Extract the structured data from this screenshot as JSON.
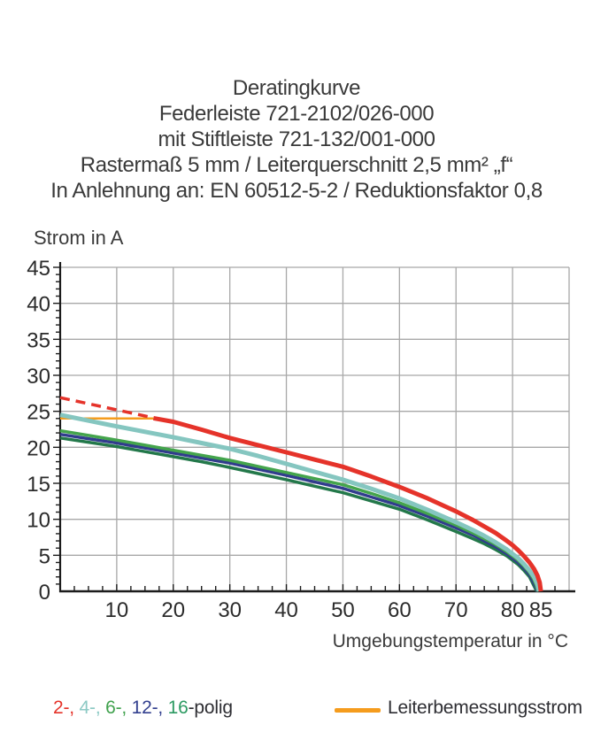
{
  "header": {
    "lines": [
      "Deratingkurve",
      "Federleiste 721-2102/026-000",
      "mit Stiftleiste 721-132/001-000",
      "Rastermaß 5 mm / Leiterquerschnitt 2,5 mm² „f“",
      "In Anlehnung an: EN 60512-5-2 / Reduktionsfaktor 0,8"
    ]
  },
  "chart_data": {
    "type": "line",
    "title": "Deratingkurve Federleiste 721-2102/026-000 mit Stiftleiste 721-132/001-000",
    "xlabel": "Umgebungstemperatur in °C",
    "ylabel": "Strom in A",
    "xlim": [
      0,
      90
    ],
    "ylim": [
      0,
      45
    ],
    "grid": true,
    "legend_position": "bottom",
    "grid_color": "#a8a8a8",
    "axis_color": "#1c1c1c",
    "x_ticks": [
      10,
      20,
      30,
      40,
      50,
      60,
      70,
      80,
      85
    ],
    "x_tick_labels": [
      "10",
      "20",
      "30",
      "40",
      "50",
      "60",
      "70",
      "80",
      "85"
    ],
    "y_ticks": [
      0,
      5,
      10,
      15,
      20,
      25,
      30,
      35,
      40,
      45
    ],
    "y_tick_labels": [
      "0",
      "5",
      "10",
      "15",
      "20",
      "25",
      "30",
      "35",
      "40",
      "45"
    ],
    "x_gridlines": [
      10,
      20,
      30,
      40,
      50,
      60,
      70,
      80,
      90
    ],
    "y_gridlines": [
      5,
      10,
      15,
      20,
      25,
      30,
      35,
      40,
      45
    ],
    "x_minor_step": 2.5,
    "y_minor_step": 1,
    "series": [
      {
        "name": "leiterbemessungsstrom",
        "color": "#f59c1d",
        "width": 2.5,
        "points": [
          [
            0,
            24
          ],
          [
            16.5,
            24
          ]
        ]
      },
      {
        "name": "2-polig-ohne-reduktion-gestrichelt",
        "color": "#e5332a",
        "width": 3.5,
        "dash": "11 7",
        "points": [
          [
            0,
            26.9
          ],
          [
            16.5,
            24.1
          ]
        ]
      },
      {
        "name": "16-polig",
        "color": "#23784a",
        "width": 3.5,
        "points": [
          [
            0,
            21.3
          ],
          [
            5,
            20.7
          ],
          [
            10,
            20.1
          ],
          [
            15,
            19.4
          ],
          [
            20,
            18.7
          ],
          [
            25,
            18.0
          ],
          [
            30,
            17.2
          ],
          [
            35,
            16.35
          ],
          [
            40,
            15.5
          ],
          [
            45,
            14.6
          ],
          [
            50,
            13.7
          ],
          [
            55,
            12.55
          ],
          [
            60,
            11.4
          ],
          [
            65,
            9.9
          ],
          [
            70,
            8.3
          ],
          [
            73,
            7.3
          ],
          [
            75,
            6.6
          ],
          [
            77,
            5.8
          ],
          [
            79,
            4.9
          ],
          [
            80,
            4.3
          ],
          [
            81,
            3.7
          ],
          [
            82,
            2.9
          ],
          [
            83,
            2.0
          ],
          [
            83.5,
            1.2
          ],
          [
            84.0,
            0.4
          ],
          [
            84.3,
            0
          ]
        ]
      },
      {
        "name": "12-polig",
        "color": "#313c8d",
        "width": 3.5,
        "points": [
          [
            0,
            21.8
          ],
          [
            5,
            21.2
          ],
          [
            10,
            20.6
          ],
          [
            15,
            19.9
          ],
          [
            20,
            19.2
          ],
          [
            25,
            18.5
          ],
          [
            30,
            17.8
          ],
          [
            35,
            16.95
          ],
          [
            40,
            16.1
          ],
          [
            45,
            15.2
          ],
          [
            50,
            14.3
          ],
          [
            55,
            13.1
          ],
          [
            60,
            11.9
          ],
          [
            65,
            10.4
          ],
          [
            70,
            8.8
          ],
          [
            73,
            7.8
          ],
          [
            75,
            7.0
          ],
          [
            77,
            6.2
          ],
          [
            79,
            5.2
          ],
          [
            80,
            4.6
          ],
          [
            81,
            4.0
          ],
          [
            82,
            3.2
          ],
          [
            83,
            2.3
          ],
          [
            83.6,
            1.4
          ],
          [
            84.1,
            0.6
          ],
          [
            84.4,
            0
          ]
        ]
      },
      {
        "name": "6-polig",
        "color": "#44a44c",
        "width": 3.5,
        "points": [
          [
            0,
            22.3
          ],
          [
            5,
            21.65
          ],
          [
            10,
            21.0
          ],
          [
            15,
            20.3
          ],
          [
            20,
            19.6
          ],
          [
            25,
            18.9
          ],
          [
            30,
            18.2
          ],
          [
            35,
            17.35
          ],
          [
            40,
            16.5
          ],
          [
            45,
            15.65
          ],
          [
            50,
            14.8
          ],
          [
            55,
            13.6
          ],
          [
            60,
            12.3
          ],
          [
            65,
            10.8
          ],
          [
            70,
            9.2
          ],
          [
            73,
            8.1
          ],
          [
            75,
            7.3
          ],
          [
            77,
            6.5
          ],
          [
            79,
            5.5
          ],
          [
            80,
            4.9
          ],
          [
            81,
            4.3
          ],
          [
            82,
            3.5
          ],
          [
            83,
            2.6
          ],
          [
            83.7,
            1.7
          ],
          [
            84.2,
            0.8
          ],
          [
            84.5,
            0
          ]
        ]
      },
      {
        "name": "4-polig",
        "color": "#85c6c0",
        "width": 5,
        "points": [
          [
            0,
            24.5
          ],
          [
            5,
            23.7
          ],
          [
            10,
            22.9
          ],
          [
            15,
            22.15
          ],
          [
            20,
            21.4
          ],
          [
            25,
            20.6
          ],
          [
            30,
            19.8
          ],
          [
            35,
            18.8
          ],
          [
            40,
            17.7
          ],
          [
            45,
            16.6
          ],
          [
            50,
            15.5
          ],
          [
            55,
            14.25
          ],
          [
            60,
            12.9
          ],
          [
            65,
            11.3
          ],
          [
            70,
            9.6
          ],
          [
            73,
            8.5
          ],
          [
            75,
            7.7
          ],
          [
            77,
            6.8
          ],
          [
            79,
            5.8
          ],
          [
            80,
            5.2
          ],
          [
            81,
            4.6
          ],
          [
            82,
            3.8
          ],
          [
            83,
            2.9
          ],
          [
            83.8,
            2.0
          ],
          [
            84.4,
            1.0
          ],
          [
            84.7,
            0
          ]
        ]
      },
      {
        "name": "2-polig",
        "color": "#e5332a",
        "width": 5,
        "points": [
          [
            16.5,
            24.05
          ],
          [
            20,
            23.55
          ],
          [
            25,
            22.45
          ],
          [
            30,
            21.3
          ],
          [
            35,
            20.3
          ],
          [
            40,
            19.3
          ],
          [
            45,
            18.3
          ],
          [
            50,
            17.3
          ],
          [
            55,
            15.95
          ],
          [
            60,
            14.5
          ],
          [
            65,
            12.9
          ],
          [
            70,
            11.1
          ],
          [
            73,
            9.9
          ],
          [
            75,
            9.0
          ],
          [
            77,
            8.1
          ],
          [
            79,
            7.0
          ],
          [
            80,
            6.4
          ],
          [
            81,
            5.7
          ],
          [
            82,
            4.9
          ],
          [
            83,
            4.0
          ],
          [
            83.8,
            3.1
          ],
          [
            84.4,
            2.2
          ],
          [
            84.8,
            1.2
          ],
          [
            85,
            0
          ]
        ]
      }
    ]
  },
  "legend": {
    "poles": [
      {
        "label": "2-, ",
        "color": "#e5332a"
      },
      {
        "label": "4-, ",
        "color": "#8cc9c4"
      },
      {
        "label": "6-, ",
        "color": "#41a24e"
      },
      {
        "label": "12-, ",
        "color": "#33408f"
      },
      {
        "label": "16",
        "color": "#2c9a62"
      }
    ],
    "poles_suffix": "-polig",
    "line_label": "Leiterbemessungsstrom",
    "line_color": "#f59c1d"
  }
}
